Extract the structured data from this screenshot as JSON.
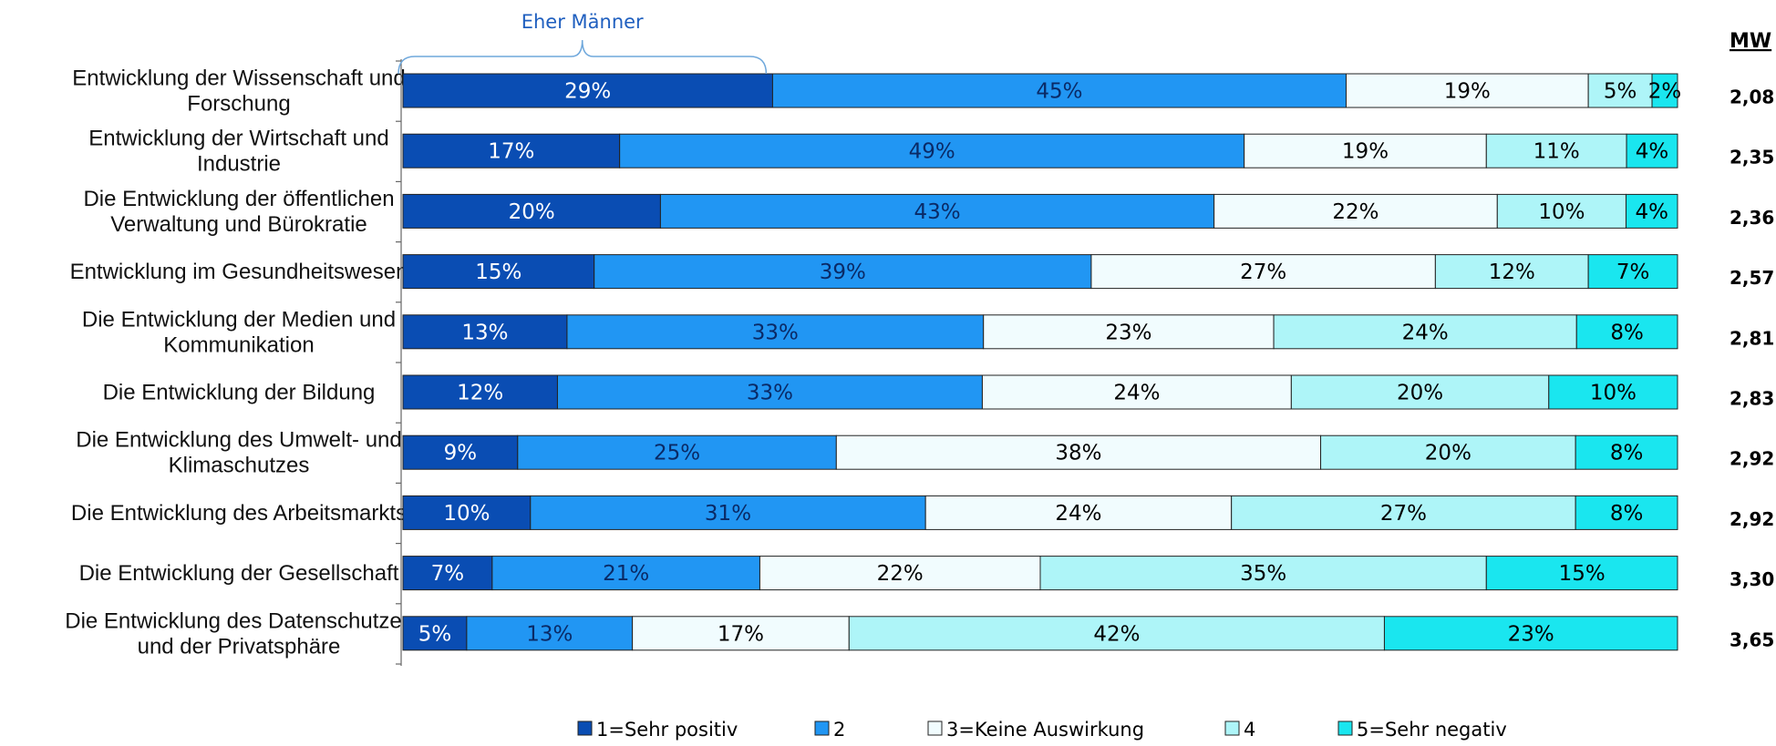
{
  "chart_data": {
    "type": "bar",
    "orientation": "horizontal",
    "stacked": true,
    "percent": true,
    "categories": [
      "Entwicklung der Wissenschaft und Forschung",
      "Entwicklung der Wirtschaft und Industrie",
      "Die Entwicklung der öffentlichen Verwaltung und Bürokratie",
      "Entwicklung im Gesundheitswesen",
      "Die Entwicklung der Medien und Kommunikation",
      "Die Entwicklung der Bildung",
      "Die Entwicklung des Umwelt- und Klimaschutzes",
      "Die Entwicklung des Arbeitsmarkts",
      "Die Entwicklung der Gesellschaft",
      "Die Entwicklung des Datenschutzes und der Privatsphäre"
    ],
    "category_lines": [
      [
        "Entwicklung der Wissenschaft und",
        "Forschung"
      ],
      [
        "Entwicklung der Wirtschaft und",
        "Industrie"
      ],
      [
        "Die Entwicklung der öffentlichen",
        "Verwaltung und Bürokratie"
      ],
      [
        "Entwicklung im Gesundheitswesen"
      ],
      [
        "Die Entwicklung der Medien und",
        "Kommunikation"
      ],
      [
        "Die Entwicklung der Bildung"
      ],
      [
        "Die Entwicklung des Umwelt- und",
        "Klimaschutzes"
      ],
      [
        "Die Entwicklung des Arbeitsmarkts"
      ],
      [
        "Die Entwicklung der Gesellschaft"
      ],
      [
        "Die Entwicklung des Datenschutzes",
        "und der Privatsphäre"
      ]
    ],
    "series": [
      {
        "name": "1=Sehr positiv",
        "color": "#0a4db3",
        "label_color": "#ffffff",
        "values": [
          29,
          17,
          20,
          15,
          13,
          12,
          9,
          10,
          7,
          5
        ]
      },
      {
        "name": "2",
        "color": "#2196f3",
        "label_color": "#0a2a66",
        "values": [
          45,
          49,
          43,
          39,
          33,
          33,
          25,
          31,
          21,
          13
        ]
      },
      {
        "name": "3=Keine Auswirkung",
        "color": "#f1fcfe",
        "label_color": "#000000",
        "values": [
          19,
          19,
          22,
          27,
          23,
          24,
          38,
          24,
          22,
          17
        ]
      },
      {
        "name": "4",
        "color": "#aef5f8",
        "label_color": "#000000",
        "values": [
          5,
          11,
          10,
          12,
          24,
          20,
          20,
          27,
          35,
          42
        ]
      },
      {
        "name": "5=Sehr negativ",
        "color": "#1ae6ef",
        "label_color": "#000000",
        "values": [
          2,
          4,
          4,
          7,
          8,
          10,
          8,
          8,
          15,
          23
        ]
      }
    ],
    "mean_header": "MW",
    "mean_values": [
      "2,08",
      "2,35",
      "2,36",
      "2,57",
      "2,81",
      "2,83",
      "2,92",
      "2,92",
      "3,30",
      "3,65"
    ],
    "annotation": {
      "text": "Eher Männer",
      "category_index": 0,
      "series_index": 0
    },
    "legend_position": "bottom",
    "grid": false
  }
}
